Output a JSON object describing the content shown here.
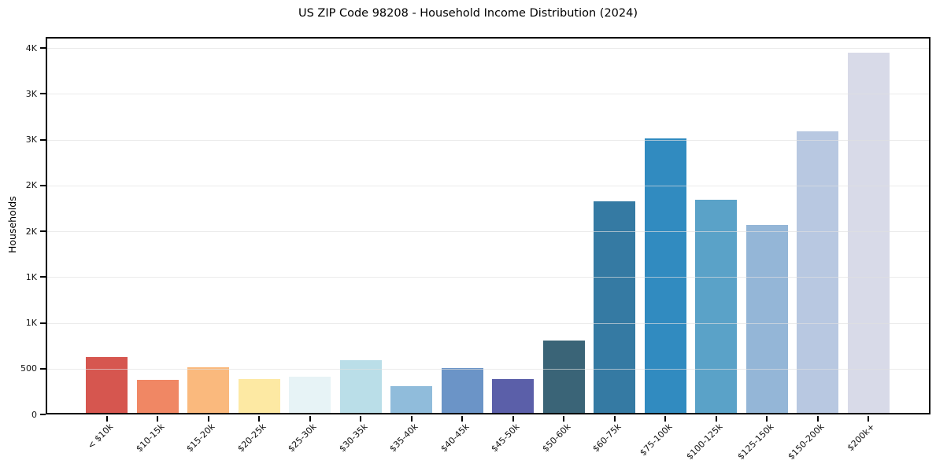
{
  "title": "US ZIP Code 98208 - Household Income Distribution (2024)",
  "chart_data": {
    "type": "bar",
    "title": "US ZIP Code 98208 - Household Income Distribution (2024)",
    "xlabel": "",
    "ylabel": "Households",
    "categories": [
      "< $10k",
      "$10-15k",
      "$15-20k",
      "$20-25k",
      "$25-30k",
      "$30-35k",
      "$35-40k",
      "$40-45k",
      "$45-50k",
      "$50-60k",
      "$60-75k",
      "$75-100k",
      "$100-125k",
      "$125-150k",
      "$150-200k",
      "$200k+"
    ],
    "values": [
      630,
      375,
      515,
      385,
      410,
      590,
      310,
      505,
      390,
      810,
      2330,
      3010,
      2345,
      2070,
      3090,
      3950
    ],
    "bar_colors": [
      "#d6564f",
      "#f08764",
      "#fab97d",
      "#fde9a3",
      "#e7f3f6",
      "#badee8",
      "#90bcdb",
      "#6b94c7",
      "#5b5fa9",
      "#3a6477",
      "#357aa3",
      "#318bc0",
      "#5aa2c8",
      "#94b6d7",
      "#b8c8e1",
      "#d8dae8"
    ],
    "ylim": [
      0,
      4120
    ],
    "yticks": [
      {
        "value": 0,
        "label": "0"
      },
      {
        "value": 500,
        "label": "500"
      },
      {
        "value": 1000,
        "label": "1K"
      },
      {
        "value": 1500,
        "label": "1K"
      },
      {
        "value": 2000,
        "label": "2K"
      },
      {
        "value": 2500,
        "label": "2K"
      },
      {
        "value": 3000,
        "label": "3K"
      },
      {
        "value": 3500,
        "label": "3K"
      },
      {
        "value": 4000,
        "label": "4K"
      }
    ],
    "grid": "horizontal",
    "legend_position": "none",
    "colors": {
      "background": "#ffffff",
      "grid": "#e5e5e5",
      "spine": "#000000",
      "text": "#111111"
    }
  }
}
